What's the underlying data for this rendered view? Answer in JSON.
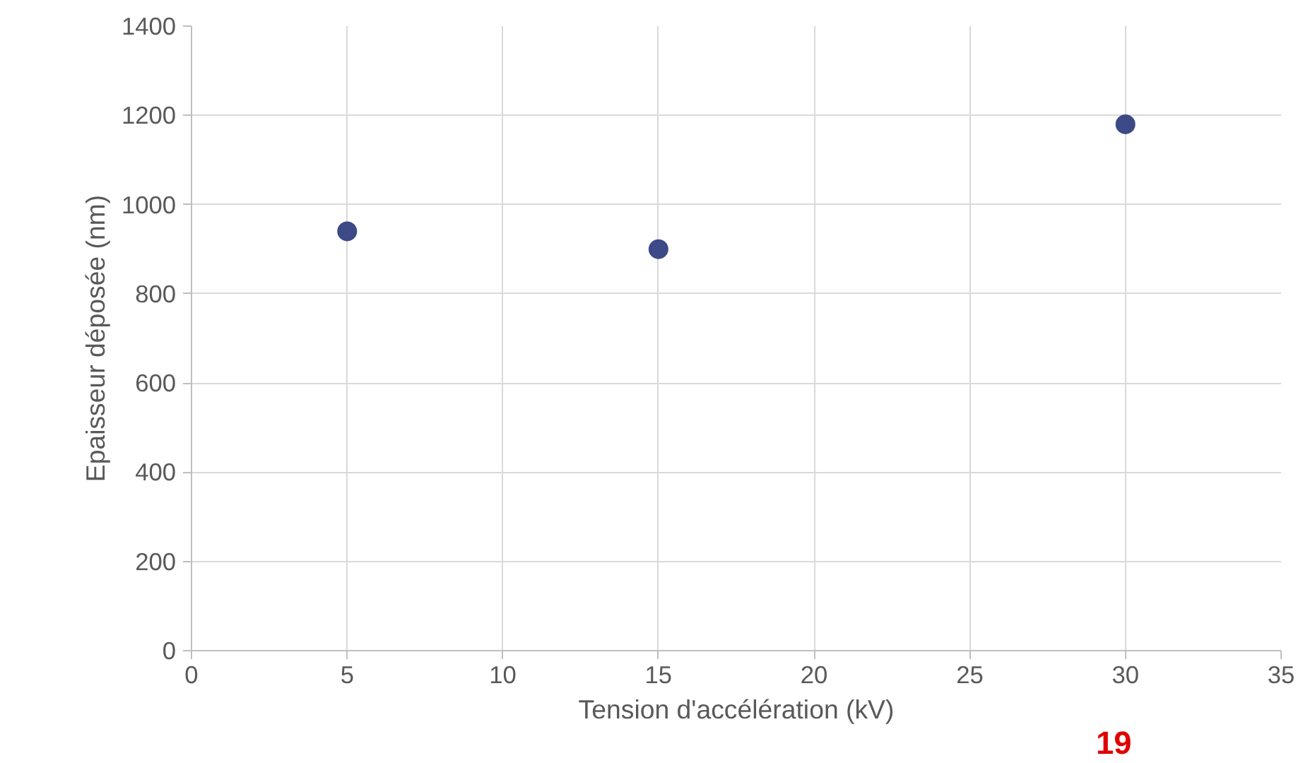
{
  "chart_data": {
    "type": "scatter",
    "xlabel": "Tension d'accélération (kV)",
    "ylabel": "Epaisseur déposée (nm)",
    "x": [
      5,
      15,
      30
    ],
    "series": [
      {
        "color": "#3c4a87",
        "values": [
          940,
          900,
          1180
        ]
      }
    ],
    "xlim": [
      0,
      35
    ],
    "xticks": [
      0,
      5,
      10,
      15,
      20,
      25,
      30,
      35
    ],
    "ylim": [
      0,
      1400
    ],
    "yticks": [
      0,
      200,
      400,
      600,
      800,
      1000,
      1200,
      1400
    ],
    "grid": true,
    "marker": "circle",
    "annotations": [
      "19"
    ]
  }
}
